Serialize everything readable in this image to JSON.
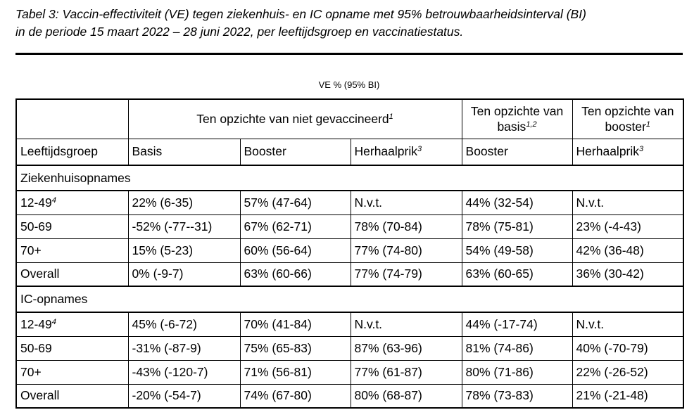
{
  "caption_lines": [
    "Tabel 3: Vaccin-effectiviteit (VE) tegen ziekenhuis- en IC opname met 95% betrouwbaarheidsinterval (BI)",
    "in de periode 15 maart 2022 – 28 juni 2022, per leeftijdsgroep en vaccinatiestatus."
  ],
  "table": {
    "super_header": "VE % (95% BI)",
    "group_headers": [
      {
        "text": "Ten opzichte van niet gevaccineerd",
        "note": "1"
      },
      {
        "text": "Ten opzichte van basis",
        "note": "1,2"
      },
      {
        "text": "Ten opzichte van booster",
        "note": "1"
      }
    ],
    "columns": [
      {
        "text": "Leeftijdsgroep"
      },
      {
        "text": "Basis"
      },
      {
        "text": "Booster"
      },
      {
        "text": "Herhaalprik",
        "note": "3"
      },
      {
        "text": "Booster"
      },
      {
        "text": "Herhaalprik",
        "note": "3"
      }
    ],
    "sections": [
      {
        "name": "Ziekenhuisopnames",
        "rows": [
          {
            "label": "12-49",
            "note": "4",
            "cells": [
              "22% (6-35)",
              "57% (47-64)",
              "N.v.t.",
              "44% (32-54)",
              "N.v.t."
            ]
          },
          {
            "label": "50-69",
            "cells": [
              "-52% (-77--31)",
              "67% (62-71)",
              "78% (70-84)",
              "78% (75-81)",
              "23% (-4-43)"
            ]
          },
          {
            "label": "70+",
            "cells": [
              "15% (5-23)",
              "60% (56-64)",
              "77% (74-80)",
              "54% (49-58)",
              "42% (36-48)"
            ]
          },
          {
            "label": "Overall",
            "cells": [
              "0% (-9-7)",
              "63% (60-66)",
              "77% (74-79)",
              "63% (60-65)",
              "36% (30-42)"
            ]
          }
        ]
      },
      {
        "name": "IC-opnames",
        "rows": [
          {
            "label": "12-49",
            "note": "4",
            "cells": [
              "45% (-6-72)",
              "70% (41-84)",
              "N.v.t.",
              "44% (-17-74)",
              "N.v.t."
            ]
          },
          {
            "label": "50-69",
            "cells": [
              "-31% (-87-9)",
              "75% (65-83)",
              "87% (63-96)",
              "81% (74-86)",
              "40% (-70-79)"
            ]
          },
          {
            "label": "70+",
            "cells": [
              "-43% (-120-7)",
              "71% (56-81)",
              "77% (61-87)",
              "80% (71-86)",
              "22% (-26-52)"
            ]
          },
          {
            "label": "Overall",
            "cells": [
              "-20% (-54-7)",
              "74% (67-80)",
              "80% (68-87)",
              "78% (73-83)",
              "21% (-21-48)"
            ]
          }
        ]
      }
    ]
  }
}
